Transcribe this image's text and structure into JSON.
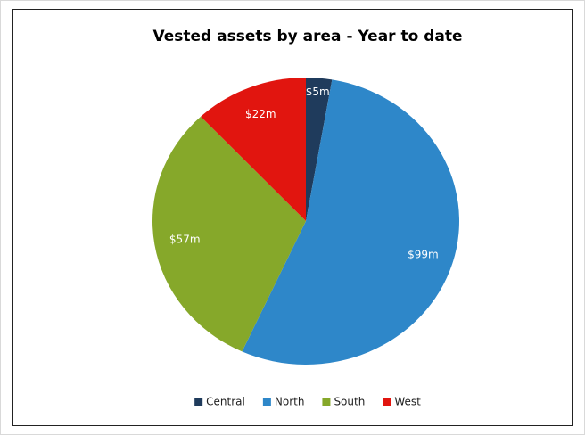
{
  "chart_data": {
    "type": "pie",
    "title": "Vested assets by area - Year to date",
    "categories": [
      "Central",
      "North",
      "South",
      "West"
    ],
    "values": [
      5,
      99,
      57,
      22
    ],
    "value_labels": [
      "$5m",
      "$99m",
      "$57m",
      "$22m"
    ],
    "colors": [
      "#1f3b5c",
      "#2e87c9",
      "#86a82a",
      "#e1150f"
    ],
    "legend": "bottom"
  }
}
